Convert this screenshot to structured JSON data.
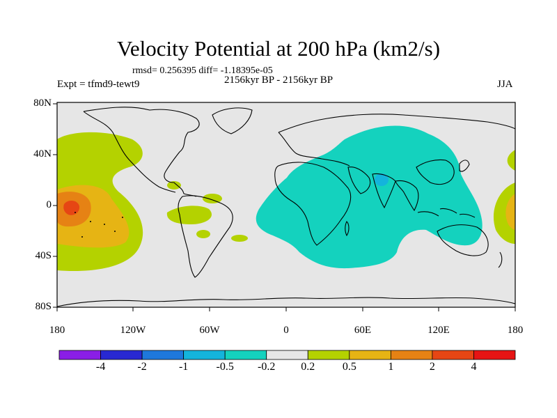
{
  "title": "Velocity Potential at 200 hPa (km2/s)",
  "stats": "rmsd= 0.256395 diff= -1.18395e-05",
  "period": "2156kyr BP - 2156kyr BP",
  "experiment": "Expt = tfmd9-tewt9",
  "season": "JJA",
  "lat_labels": [
    "80N",
    "40N",
    "0",
    "40S",
    "80S"
  ],
  "lon_labels": [
    "180",
    "120W",
    "60W",
    "0",
    "60E",
    "120E",
    "180"
  ],
  "colorbar": {
    "labels": [
      "-4",
      "-2",
      "-1",
      "-0.5",
      "-0.2",
      "0.2",
      "0.5",
      "1",
      "2",
      "4"
    ],
    "colors": [
      "#8a1ee6",
      "#2828d2",
      "#1e78dc",
      "#14b4dc",
      "#14d2be",
      "#e6e6e6",
      "#b4d200",
      "#e6b414",
      "#e68214",
      "#e64614",
      "#e61414"
    ]
  },
  "colors": {
    "land_background": "#e6e6e6",
    "positive_weak": "#b4d200",
    "positive_mid": "#e6b414",
    "positive_strong": "#e68214",
    "positive_max": "#e64614",
    "negative_weak": "#14d2be",
    "negative_mid": "#14b4dc"
  }
}
